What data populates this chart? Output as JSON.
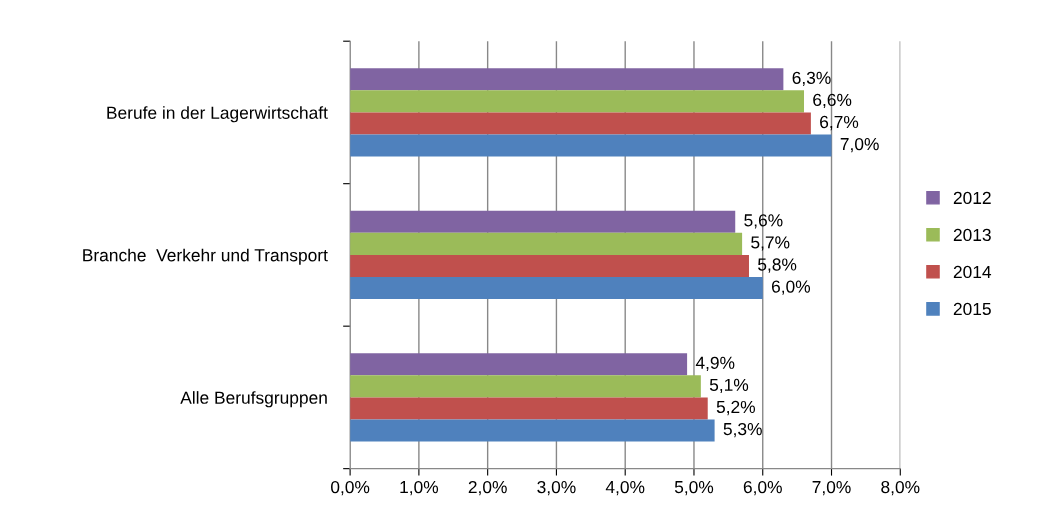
{
  "chart_data": {
    "type": "bar",
    "orientation": "horizontal",
    "categories": [
      "Berufe in der Lagerwirtschaft",
      "Branche  Verkehr und Transport",
      "Alle Berufsgruppen"
    ],
    "series": [
      {
        "name": "2012",
        "color": "#8064a2",
        "values": [
          6.3,
          5.6,
          4.9
        ],
        "value_labels": [
          "6,3%",
          "5,6%",
          "4,9%"
        ]
      },
      {
        "name": "2013",
        "color": "#9bbb59",
        "values": [
          6.6,
          5.7,
          5.1
        ],
        "value_labels": [
          "6,6%",
          "5,7%",
          "5,1%"
        ]
      },
      {
        "name": "2014",
        "color": "#c0504d",
        "values": [
          6.7,
          5.8,
          5.2
        ],
        "value_labels": [
          "6,7%",
          "5,8%",
          "5,2%"
        ]
      },
      {
        "name": "2015",
        "color": "#4f81bd",
        "values": [
          7.0,
          6.0,
          5.3
        ],
        "value_labels": [
          "7,0%",
          "6,0%",
          "5,3%"
        ]
      }
    ],
    "xlim": [
      0,
      8
    ],
    "xticks": [
      {
        "value": 0,
        "label": "0,0%"
      },
      {
        "value": 1,
        "label": "1,0%"
      },
      {
        "value": 2,
        "label": "2,0%"
      },
      {
        "value": 3,
        "label": "3,0%"
      },
      {
        "value": 4,
        "label": "4,0%"
      },
      {
        "value": 5,
        "label": "5,0%"
      },
      {
        "value": 6,
        "label": "6,0%"
      },
      {
        "value": 7,
        "label": "7,0%"
      },
      {
        "value": 8,
        "label": "8,0%"
      }
    ],
    "grid": "x",
    "legend": "right"
  }
}
